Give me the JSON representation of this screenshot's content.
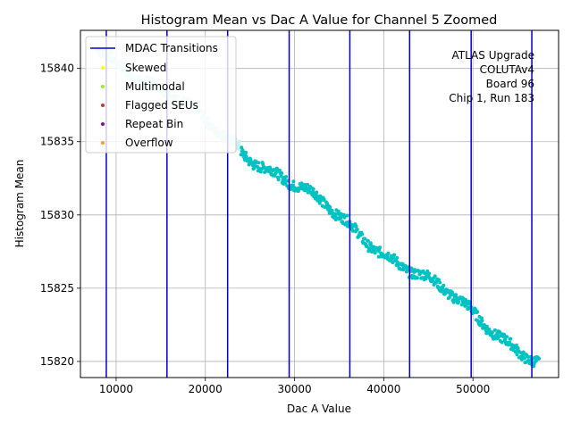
{
  "chart_data": {
    "type": "scatter",
    "title": "Histogram Mean vs Dac A Value for Channel 5 Zoomed",
    "xlabel": "Dac A Value",
    "ylabel": "Histogram Mean",
    "xlim": [
      6000,
      59600
    ],
    "ylim": [
      15818.9,
      15842.6
    ],
    "xticks": [
      10000,
      20000,
      30000,
      40000,
      50000
    ],
    "yticks": [
      15820,
      15825,
      15830,
      15835,
      15840
    ],
    "grid": true,
    "legend_position": "top-left",
    "annotation": [
      "ATLAS Upgrade",
      "COLUTAv4",
      "Board 96",
      "Chip 1, Run 183"
    ],
    "transition_lines": {
      "name": "MDAC Transitions",
      "color": "#0000cc",
      "x": [
        8900,
        15700,
        22500,
        29400,
        36200,
        42900,
        49800,
        56600
      ]
    },
    "series": [
      {
        "name": "Skewed",
        "color": "#ffff00",
        "points": []
      },
      {
        "name": "Multimodal",
        "color": "#99ee22",
        "points": []
      },
      {
        "name": "Flagged SEUs",
        "color": "#cc3333",
        "points": []
      },
      {
        "name": "Repeat Bin",
        "color": "#881188",
        "points": []
      },
      {
        "name": "Overflow",
        "color": "#ff9922",
        "points": []
      }
    ],
    "data_series": [
      {
        "color": "#c8f0f0",
        "x_range": [
          8000,
          22400
        ],
        "y_start": 15841.5,
        "y_end": 15835.3
      },
      {
        "color": "#c8f0f0",
        "x_range": [
          22400,
          24000
        ],
        "y_start": 15835.3,
        "y_end": 15834.8
      },
      {
        "color": "#00c2c2",
        "x_range": [
          24000,
          57400
        ],
        "y_start": 15834.6,
        "y_end": 15820.0
      }
    ]
  }
}
